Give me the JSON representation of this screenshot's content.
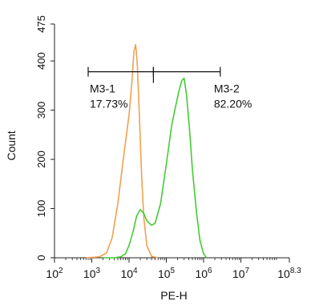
{
  "chart_data": {
    "type": "area",
    "title": "",
    "xlabel": "PE-H",
    "ylabel": "Count",
    "x_scale": "log10",
    "xlim": [
      100,
      199526231
    ],
    "ylim": [
      0,
      475
    ],
    "grid": false,
    "legend": "none",
    "x_ticks": [
      {
        "value": 100,
        "base": "10",
        "exp": "2"
      },
      {
        "value": 1000,
        "base": "10",
        "exp": "3"
      },
      {
        "value": 10000,
        "base": "10",
        "exp": "4"
      },
      {
        "value": 100000,
        "base": "10",
        "exp": "5"
      },
      {
        "value": 1000000,
        "base": "10",
        "exp": "6"
      },
      {
        "value": 10000000,
        "base": "10",
        "exp": "7"
      },
      {
        "value": 199526231,
        "base": "10",
        "exp": "8.3"
      }
    ],
    "y_ticks": [
      0,
      100,
      200,
      300,
      400,
      475
    ],
    "series": [
      {
        "color": "#f0a050",
        "x": [
          700,
          1600,
          2500,
          3500,
          5000,
          7000,
          10000,
          12000,
          13500,
          15000,
          16500,
          18000,
          20000,
          22000,
          25000,
          30000,
          40000,
          60000
        ],
        "y": [
          0,
          2,
          10,
          40,
          110,
          200,
          290,
          360,
          420,
          433,
          400,
          330,
          240,
          160,
          80,
          25,
          3,
          0
        ]
      },
      {
        "color": "#44cc33",
        "x": [
          2000,
          4000,
          6000,
          8000,
          10000,
          13000,
          16000,
          20000,
          25000,
          30000,
          40000,
          50000,
          70000,
          100000,
          140000,
          180000,
          220000,
          260000,
          300000,
          350000,
          420000,
          500000,
          650000,
          800000,
          1000000,
          1200000
        ],
        "y": [
          0,
          0,
          2,
          8,
          25,
          55,
          85,
          98,
          90,
          75,
          66,
          70,
          110,
          190,
          270,
          310,
          340,
          360,
          365,
          330,
          260,
          180,
          90,
          35,
          8,
          0
        ]
      }
    ],
    "gates": [
      {
        "name": "M3-1",
        "percent": "17.73%",
        "x_start": 800,
        "x_end": 45000
      },
      {
        "name": "M3-2",
        "percent": "82.20%",
        "x_start": 45000,
        "x_end": 2800000
      }
    ],
    "gate_y": 378
  }
}
